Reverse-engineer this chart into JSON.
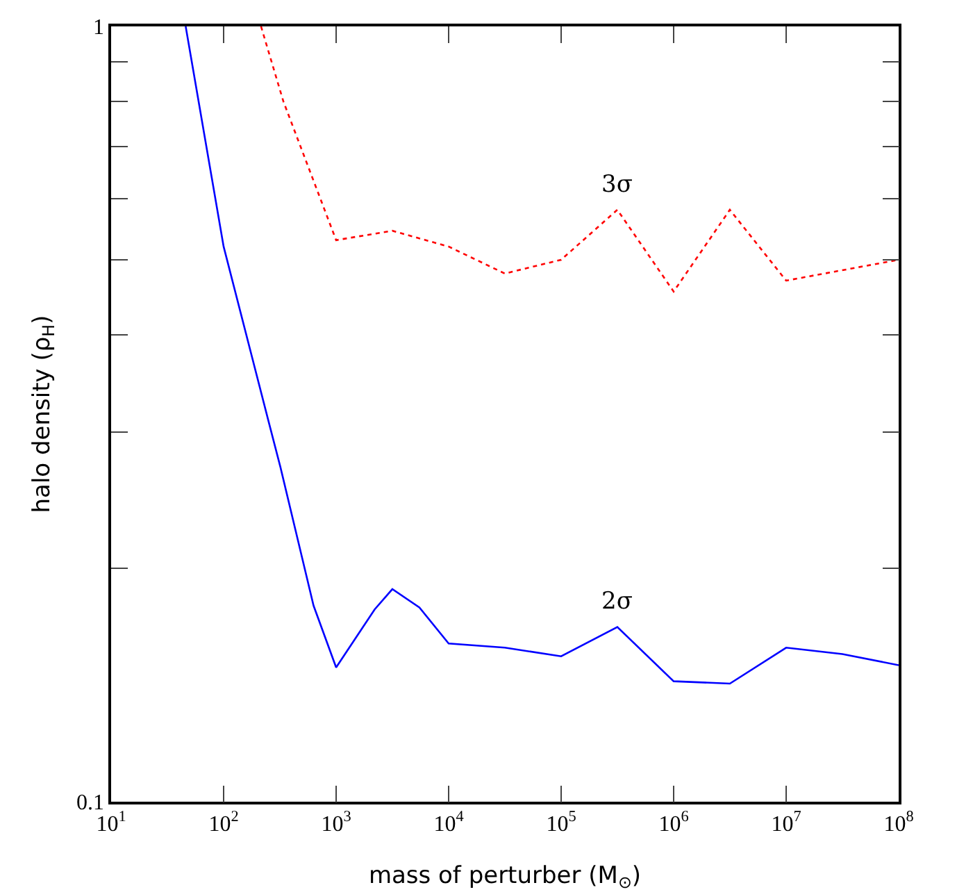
{
  "chart_data": {
    "type": "line",
    "xlabel": "mass of perturber (M$_{⊙}$)",
    "ylabel": "halo density (ρ$_{H}$)",
    "log": "xy",
    "grid": false,
    "legend": false,
    "xlim": [
      10,
      100000000
    ],
    "ylim": [
      0.1,
      1
    ],
    "xticks": [
      {
        "value": 10,
        "label": "10$^{1}$"
      },
      {
        "value": 100,
        "label": "10$^{2}$"
      },
      {
        "value": 1000,
        "label": "10$^{3}$"
      },
      {
        "value": 10000,
        "label": "10$^{4}$"
      },
      {
        "value": 100000,
        "label": "10$^{5}$"
      },
      {
        "value": 1000000,
        "label": "10$^{6}$"
      },
      {
        "value": 10000000,
        "label": "10$^{7}$"
      },
      {
        "value": 100000000,
        "label": "10$^{8}$"
      }
    ],
    "yticks": [
      0.1,
      {
        "value": 0.2,
        "label": null
      },
      {
        "value": 0.3,
        "label": null
      },
      {
        "value": 0.4,
        "label": null
      },
      {
        "value": 0.5,
        "label": null
      },
      {
        "value": 0.6,
        "label": null
      },
      {
        "value": 0.7,
        "label": null
      },
      {
        "value": 0.8,
        "label": null
      },
      {
        "value": 0.9,
        "label": null
      },
      1
    ],
    "series": [
      {
        "name": "3σ",
        "color": "#ff0000",
        "line_style": "dotted",
        "x": [
          215,
          340,
          1000,
          3160,
          10000,
          31600,
          100000,
          316000,
          1000000,
          3160000,
          10000000,
          100000000
        ],
        "values": [
          1,
          0.8,
          0.53,
          0.545,
          0.52,
          0.48,
          0.5,
          0.58,
          0.455,
          0.58,
          0.47,
          0.5
        ]
      },
      {
        "name": "2σ",
        "color": "#0000ff",
        "line_style": "solid",
        "x": [
          46,
          100,
          250,
          320,
          630,
          1000,
          2200,
          3160,
          5500,
          10000,
          31600,
          100000,
          316000,
          1000000,
          3160000,
          10000000,
          31600000,
          100000000
        ],
        "values": [
          1,
          0.52,
          0.31,
          0.27,
          0.179,
          0.149,
          0.177,
          0.188,
          0.178,
          0.16,
          0.158,
          0.154,
          0.168,
          0.143,
          0.142,
          0.158,
          0.155,
          0.15
        ]
      }
    ]
  }
}
